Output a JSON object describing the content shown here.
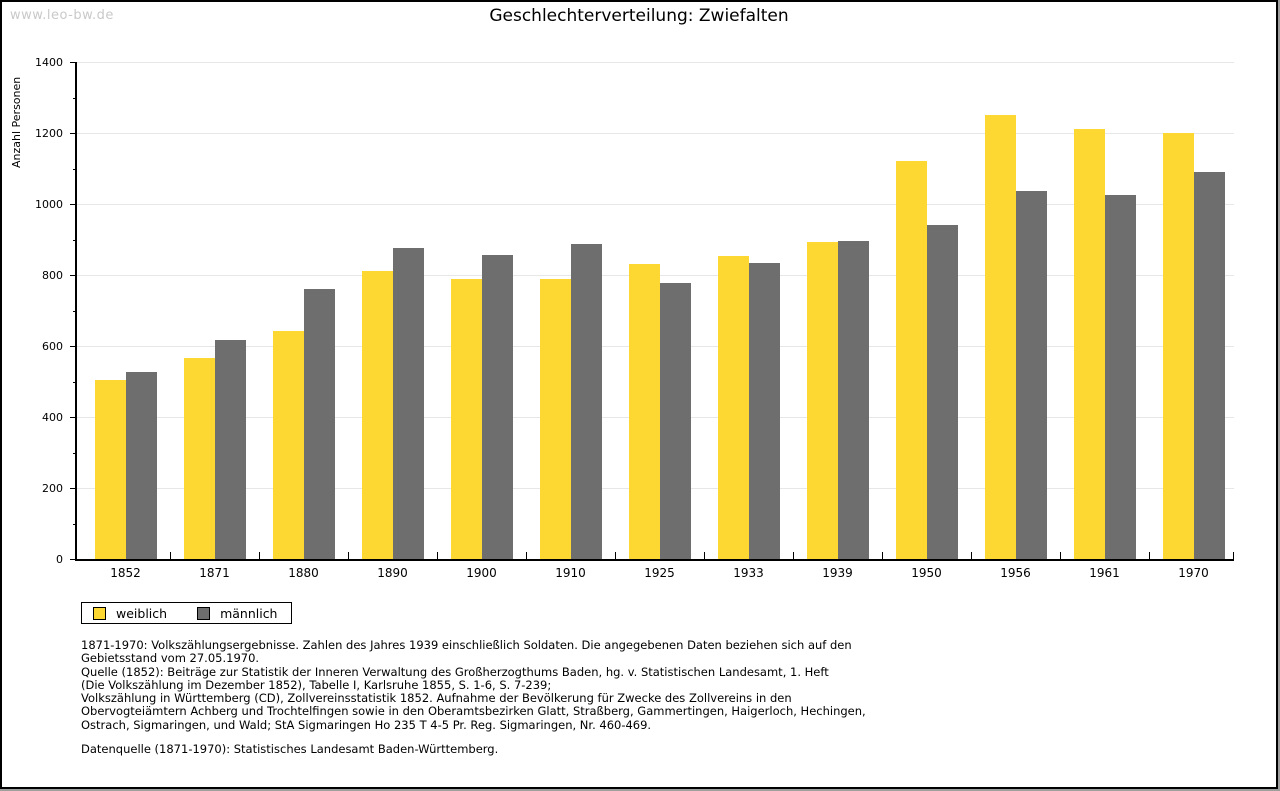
{
  "watermark": "www.leo-bw.de",
  "title": "Geschlechterverteilung: Zwiefalten",
  "chart_data": {
    "type": "bar",
    "title": "Geschlechterverteilung: Zwiefalten",
    "xlabel": "",
    "ylabel": "Anzahl Personen",
    "ylim": [
      0,
      1400
    ],
    "y_major_step": 200,
    "y_minor_step": 100,
    "grid": "horizontal",
    "legend_position": "bottom-left",
    "categories": [
      "1852",
      "1871",
      "1880",
      "1890",
      "1900",
      "1910",
      "1925",
      "1933",
      "1939",
      "1950",
      "1956",
      "1961",
      "1970"
    ],
    "series": [
      {
        "name": "weiblich",
        "color": "#fdd732",
        "values": [
          505,
          567,
          641,
          812,
          790,
          788,
          831,
          853,
          893,
          1120,
          1250,
          1212,
          1199
        ]
      },
      {
        "name": "männlich",
        "color": "#6e6e6e",
        "values": [
          528,
          618,
          760,
          876,
          855,
          888,
          777,
          835,
          897,
          942,
          1038,
          1025,
          1090
        ]
      }
    ]
  },
  "notes": [
    "1871-1970: Volkszählungsergebnisse. Zahlen des Jahres 1939 einschließlich Soldaten. Die angegebenen Daten beziehen sich auf den",
    "Gebietsstand vom 27.05.1970.",
    "Quelle (1852): Beiträge zur Statistik der Inneren Verwaltung des Großherzogthums Baden, hg. v. Statistischen Landesamt, 1. Heft",
    "(Die Volkszählung im Dezember 1852), Tabelle I, Karlsruhe 1855, S. 1-6, S. 7-239;",
    "Volkszählung in Württemberg (CD), Zollvereinsstatistik 1852. Aufnahme der Bevölkerung für Zwecke des Zollvereins in den",
    "Obervogteiämtern Achberg und Trochtelfingen sowie in den Oberamtsbezirken Glatt, Straßberg, Gammertingen, Haigerloch, Hechingen,",
    "Ostrach, Sigmaringen, und Wald; StA Sigmaringen Ho 235 T 4-5 Pr. Reg. Sigmaringen, Nr. 460-469."
  ],
  "datasource": "Datenquelle (1871-1970): Statistisches Landesamt Baden-Württemberg."
}
